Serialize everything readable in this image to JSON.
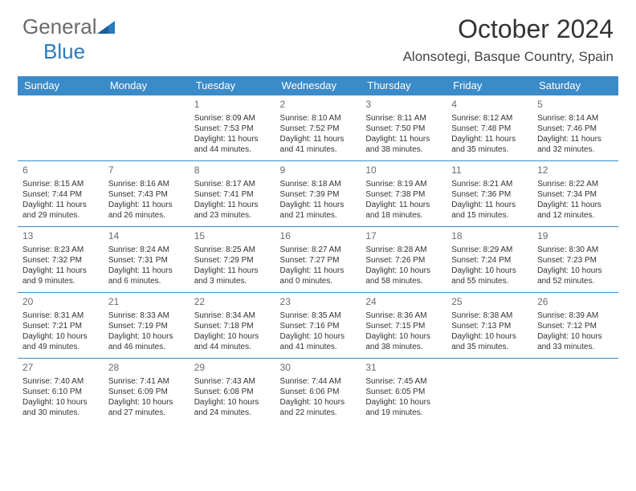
{
  "brand": {
    "part1": "General",
    "part2": "Blue"
  },
  "title": "October 2024",
  "location": "Alonsotegi, Basque Country, Spain",
  "colors": {
    "header_bg": "#3b8bc9",
    "header_text": "#ffffff",
    "divider": "#3b8bc9",
    "logo_gray": "#6b6b6b",
    "logo_blue": "#2b7bbf",
    "body_text": "#333333",
    "daynum": "#6b6b6b"
  },
  "day_headers": [
    "Sunday",
    "Monday",
    "Tuesday",
    "Wednesday",
    "Thursday",
    "Friday",
    "Saturday"
  ],
  "weeks": [
    [
      null,
      null,
      {
        "n": "1",
        "sr": "8:09 AM",
        "ss": "7:53 PM",
        "dl": "11 hours and 44 minutes."
      },
      {
        "n": "2",
        "sr": "8:10 AM",
        "ss": "7:52 PM",
        "dl": "11 hours and 41 minutes."
      },
      {
        "n": "3",
        "sr": "8:11 AM",
        "ss": "7:50 PM",
        "dl": "11 hours and 38 minutes."
      },
      {
        "n": "4",
        "sr": "8:12 AM",
        "ss": "7:48 PM",
        "dl": "11 hours and 35 minutes."
      },
      {
        "n": "5",
        "sr": "8:14 AM",
        "ss": "7:46 PM",
        "dl": "11 hours and 32 minutes."
      }
    ],
    [
      {
        "n": "6",
        "sr": "8:15 AM",
        "ss": "7:44 PM",
        "dl": "11 hours and 29 minutes."
      },
      {
        "n": "7",
        "sr": "8:16 AM",
        "ss": "7:43 PM",
        "dl": "11 hours and 26 minutes."
      },
      {
        "n": "8",
        "sr": "8:17 AM",
        "ss": "7:41 PM",
        "dl": "11 hours and 23 minutes."
      },
      {
        "n": "9",
        "sr": "8:18 AM",
        "ss": "7:39 PM",
        "dl": "11 hours and 21 minutes."
      },
      {
        "n": "10",
        "sr": "8:19 AM",
        "ss": "7:38 PM",
        "dl": "11 hours and 18 minutes."
      },
      {
        "n": "11",
        "sr": "8:21 AM",
        "ss": "7:36 PM",
        "dl": "11 hours and 15 minutes."
      },
      {
        "n": "12",
        "sr": "8:22 AM",
        "ss": "7:34 PM",
        "dl": "11 hours and 12 minutes."
      }
    ],
    [
      {
        "n": "13",
        "sr": "8:23 AM",
        "ss": "7:32 PM",
        "dl": "11 hours and 9 minutes."
      },
      {
        "n": "14",
        "sr": "8:24 AM",
        "ss": "7:31 PM",
        "dl": "11 hours and 6 minutes."
      },
      {
        "n": "15",
        "sr": "8:25 AM",
        "ss": "7:29 PM",
        "dl": "11 hours and 3 minutes."
      },
      {
        "n": "16",
        "sr": "8:27 AM",
        "ss": "7:27 PM",
        "dl": "11 hours and 0 minutes."
      },
      {
        "n": "17",
        "sr": "8:28 AM",
        "ss": "7:26 PM",
        "dl": "10 hours and 58 minutes."
      },
      {
        "n": "18",
        "sr": "8:29 AM",
        "ss": "7:24 PM",
        "dl": "10 hours and 55 minutes."
      },
      {
        "n": "19",
        "sr": "8:30 AM",
        "ss": "7:23 PM",
        "dl": "10 hours and 52 minutes."
      }
    ],
    [
      {
        "n": "20",
        "sr": "8:31 AM",
        "ss": "7:21 PM",
        "dl": "10 hours and 49 minutes."
      },
      {
        "n": "21",
        "sr": "8:33 AM",
        "ss": "7:19 PM",
        "dl": "10 hours and 46 minutes."
      },
      {
        "n": "22",
        "sr": "8:34 AM",
        "ss": "7:18 PM",
        "dl": "10 hours and 44 minutes."
      },
      {
        "n": "23",
        "sr": "8:35 AM",
        "ss": "7:16 PM",
        "dl": "10 hours and 41 minutes."
      },
      {
        "n": "24",
        "sr": "8:36 AM",
        "ss": "7:15 PM",
        "dl": "10 hours and 38 minutes."
      },
      {
        "n": "25",
        "sr": "8:38 AM",
        "ss": "7:13 PM",
        "dl": "10 hours and 35 minutes."
      },
      {
        "n": "26",
        "sr": "8:39 AM",
        "ss": "7:12 PM",
        "dl": "10 hours and 33 minutes."
      }
    ],
    [
      {
        "n": "27",
        "sr": "7:40 AM",
        "ss": "6:10 PM",
        "dl": "10 hours and 30 minutes."
      },
      {
        "n": "28",
        "sr": "7:41 AM",
        "ss": "6:09 PM",
        "dl": "10 hours and 27 minutes."
      },
      {
        "n": "29",
        "sr": "7:43 AM",
        "ss": "6:08 PM",
        "dl": "10 hours and 24 minutes."
      },
      {
        "n": "30",
        "sr": "7:44 AM",
        "ss": "6:06 PM",
        "dl": "10 hours and 22 minutes."
      },
      {
        "n": "31",
        "sr": "7:45 AM",
        "ss": "6:05 PM",
        "dl": "10 hours and 19 minutes."
      },
      null,
      null
    ]
  ],
  "labels": {
    "sunrise": "Sunrise: ",
    "sunset": "Sunset: ",
    "daylight": "Daylight: "
  }
}
